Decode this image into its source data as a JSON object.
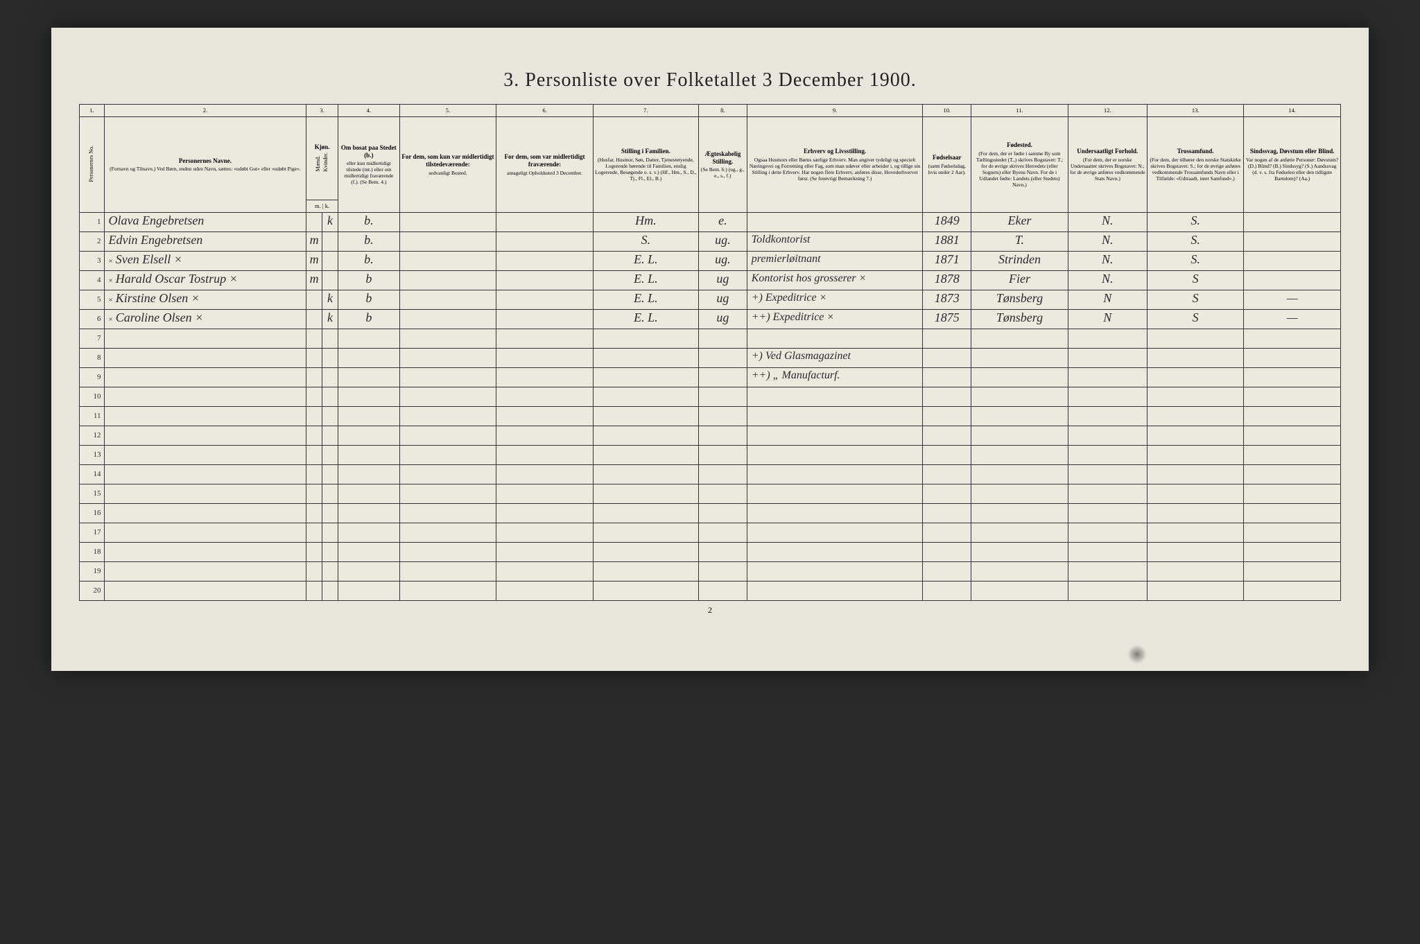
{
  "title": "3. Personliste over Folketallet 3 December 1900.",
  "page_footer": "2",
  "colors": {
    "page_bg": "#e8e6dc",
    "table_bg": "#ece9df",
    "border": "#333333",
    "ink": "#2a2a2a",
    "outer_bg": "#2a2a2a"
  },
  "typography": {
    "title_fontsize_pt": 21,
    "header_fontsize_pt": 7,
    "body_script_fontsize_pt": 14,
    "rownum_fontsize_pt": 8
  },
  "column_numbers": [
    "1.",
    "2.",
    "3.",
    "4.",
    "5.",
    "6.",
    "7.",
    "8.",
    "9.",
    "10.",
    "11.",
    "12.",
    "13.",
    "14."
  ],
  "headers": {
    "c1": {
      "vertical": "Personernes No."
    },
    "c2": {
      "main": "Personernes Navne.",
      "sub": "(Fornavn og Tilnavn.)\nVed Børn, endnu uden Navn, sættes: «udøbt Gut» eller «udøbt Pige»."
    },
    "c3": {
      "main": "Kjøn.",
      "sub_m": "Mænd.",
      "sub_k": "Kvinder.",
      "row2": "m. | k."
    },
    "c4": {
      "main": "Om bosat paa Stedet (b.)",
      "sub": "eller kun midlertidigt tilstede (mt.) eller om midlertidigt fraværende (f.). (Se Bem. 4.)"
    },
    "c5": {
      "main": "For dem, som kun var midlertidigt tilstedeværende:",
      "sub": "sedvanligt Bosted."
    },
    "c6": {
      "main": "For dem, som var midlertidigt fraværende:",
      "sub": "antageligt Opholdssted 3 December."
    },
    "c7": {
      "main": "Stilling i Familien.",
      "sub": "(Husfar, Husmor, Søn, Datter, Tjenestetyende, Logerende hørende til Familien, enslig Logerende, Besøgende o. s. v.)\n(Hf., Hm., S., D., Tj., Fl., El., B.)"
    },
    "c8": {
      "main": "Ægteskabelig Stilling.",
      "sub": "(Se Bem. 6.)\n(ug., g., e., s., f.)"
    },
    "c9": {
      "main": "Erhverv og Livsstilling.",
      "sub": "Ogsaa Husmors eller Børns særlige Erhverv. Man angiver tydeligt og specielt Næringsvei og Forretning eller Fag, som man udøver eller arbeider i, og tillige sin Stilling i dette Erhverv. Har nogen flere Erhverv, anføres disse, Hovederhvervet først.\n(Se forøvrigt Bemærkning 7.)"
    },
    "c10": {
      "main": "Fødselsaar",
      "sub": "(samt Fødselsdag, hvis under 2 Aar)."
    },
    "c11": {
      "main": "Fødested.",
      "sub": "(For dem, der er fødte i samme By som Tællingsstedet (T.,) skrives Bogstavet: T.; for de øvrige skrives Herredets (eller Sognets) eller Byens Navn. For de i Udlandet fødte: Landets (eller Stedets) Navn.)"
    },
    "c12": {
      "main": "Undersaatligt Forhold.",
      "sub": "(For dem, der er norske Undersaatter skrives Bogstavet: N.; for de øvrige anføres vedkommende Stats Navn.)"
    },
    "c13": {
      "main": "Trossamfund.",
      "sub": "(For dem, der tilhører den norske Statskirke skrives Bogstavet: S.; for de øvrige anføres vedkommende Trossamfunds Navn eller i Tilfælde: «Udtraadt, intet Samfund».)"
    },
    "c14": {
      "main": "Sindssvag, Døvstum eller Blind.",
      "sub": "Var nogen af de anførte Personer: Døvstum? (D.) Blind? (B.) Sindssyg? (S.) Aandssvag (d. v. s. fra Fødselen eller den tidligste Barndom)? (Aa.)"
    }
  },
  "rows": [
    {
      "no": "1",
      "prefix": "",
      "name": "Olava Engebretsen",
      "m": "",
      "k": "k",
      "c4": "b.",
      "c5": "",
      "c6": "",
      "c7": "Hm.",
      "c8": "e.",
      "c9": "",
      "c10": "1849",
      "c11": "Eker",
      "c12": "N.",
      "c13": "S.",
      "c14": ""
    },
    {
      "no": "2",
      "prefix": "",
      "name": "Edvin Engebretsen",
      "m": "m",
      "k": "",
      "c4": "b.",
      "c5": "",
      "c6": "",
      "c7": "S.",
      "c8": "ug.",
      "c9": "Toldkontorist",
      "c10": "1881",
      "c11": "T.",
      "c12": "N.",
      "c13": "S.",
      "c14": ""
    },
    {
      "no": "3",
      "prefix": "×",
      "name": "Sven Elsell   ×",
      "m": "m",
      "k": "",
      "c4": "b.",
      "c5": "",
      "c6": "",
      "c7": "E. L.",
      "c8": "ug.",
      "c9": "premierløitnant",
      "c10": "1871",
      "c11": "Strinden",
      "c12": "N.",
      "c13": "S.",
      "c14": ""
    },
    {
      "no": "4",
      "prefix": "×",
      "name": "Harald Oscar Tostrup ×",
      "m": "m",
      "k": "",
      "c4": "b",
      "c5": "",
      "c6": "",
      "c7": "E. L.",
      "c8": "ug",
      "c9": "Kontorist hos grosserer ×",
      "c10": "1878",
      "c11": "Fier",
      "c12": "N.",
      "c13": "S",
      "c14": ""
    },
    {
      "no": "5",
      "prefix": "×",
      "name": "Kirstine Olsen   ×",
      "m": "",
      "k": "k",
      "c4": "b",
      "c5": "",
      "c6": "",
      "c7": "E. L.",
      "c8": "ug",
      "c9": "+) Expeditrice   ×",
      "c10": "1873",
      "c11": "Tønsberg",
      "c12": "N",
      "c13": "S",
      "c14": "—"
    },
    {
      "no": "6",
      "prefix": "×",
      "name": "Caroline Olsen   ×",
      "m": "",
      "k": "k",
      "c4": "b",
      "c5": "",
      "c6": "",
      "c7": "E. L.",
      "c8": "ug",
      "c9": "++) Expeditrice   ×",
      "c10": "1875",
      "c11": "Tønsberg",
      "c12": "N",
      "c13": "S",
      "c14": "—"
    },
    {
      "no": "7",
      "prefix": "",
      "name": "",
      "m": "",
      "k": "",
      "c4": "",
      "c5": "",
      "c6": "",
      "c7": "",
      "c8": "",
      "c9": "",
      "c10": "",
      "c11": "",
      "c12": "",
      "c13": "",
      "c14": ""
    },
    {
      "no": "8",
      "prefix": "",
      "name": "",
      "m": "",
      "k": "",
      "c4": "",
      "c5": "",
      "c6": "",
      "c7": "",
      "c8": "",
      "c9": "+) Ved Glasmagazinet",
      "c10": "",
      "c11": "",
      "c12": "",
      "c13": "",
      "c14": ""
    },
    {
      "no": "9",
      "prefix": "",
      "name": "",
      "m": "",
      "k": "",
      "c4": "",
      "c5": "",
      "c6": "",
      "c7": "",
      "c8": "",
      "c9": "++) „ Manufacturf.",
      "c10": "",
      "c11": "",
      "c12": "",
      "c13": "",
      "c14": ""
    },
    {
      "no": "10",
      "prefix": "",
      "name": "",
      "m": "",
      "k": "",
      "c4": "",
      "c5": "",
      "c6": "",
      "c7": "",
      "c8": "",
      "c9": "",
      "c10": "",
      "c11": "",
      "c12": "",
      "c13": "",
      "c14": ""
    },
    {
      "no": "11",
      "prefix": "",
      "name": "",
      "m": "",
      "k": "",
      "c4": "",
      "c5": "",
      "c6": "",
      "c7": "",
      "c8": "",
      "c9": "",
      "c10": "",
      "c11": "",
      "c12": "",
      "c13": "",
      "c14": ""
    },
    {
      "no": "12",
      "prefix": "",
      "name": "",
      "m": "",
      "k": "",
      "c4": "",
      "c5": "",
      "c6": "",
      "c7": "",
      "c8": "",
      "c9": "",
      "c10": "",
      "c11": "",
      "c12": "",
      "c13": "",
      "c14": ""
    },
    {
      "no": "13",
      "prefix": "",
      "name": "",
      "m": "",
      "k": "",
      "c4": "",
      "c5": "",
      "c6": "",
      "c7": "",
      "c8": "",
      "c9": "",
      "c10": "",
      "c11": "",
      "c12": "",
      "c13": "",
      "c14": ""
    },
    {
      "no": "14",
      "prefix": "",
      "name": "",
      "m": "",
      "k": "",
      "c4": "",
      "c5": "",
      "c6": "",
      "c7": "",
      "c8": "",
      "c9": "",
      "c10": "",
      "c11": "",
      "c12": "",
      "c13": "",
      "c14": ""
    },
    {
      "no": "15",
      "prefix": "",
      "name": "",
      "m": "",
      "k": "",
      "c4": "",
      "c5": "",
      "c6": "",
      "c7": "",
      "c8": "",
      "c9": "",
      "c10": "",
      "c11": "",
      "c12": "",
      "c13": "",
      "c14": ""
    },
    {
      "no": "16",
      "prefix": "",
      "name": "",
      "m": "",
      "k": "",
      "c4": "",
      "c5": "",
      "c6": "",
      "c7": "",
      "c8": "",
      "c9": "",
      "c10": "",
      "c11": "",
      "c12": "",
      "c13": "",
      "c14": ""
    },
    {
      "no": "17",
      "prefix": "",
      "name": "",
      "m": "",
      "k": "",
      "c4": "",
      "c5": "",
      "c6": "",
      "c7": "",
      "c8": "",
      "c9": "",
      "c10": "",
      "c11": "",
      "c12": "",
      "c13": "",
      "c14": ""
    },
    {
      "no": "18",
      "prefix": "",
      "name": "",
      "m": "",
      "k": "",
      "c4": "",
      "c5": "",
      "c6": "",
      "c7": "",
      "c8": "",
      "c9": "",
      "c10": "",
      "c11": "",
      "c12": "",
      "c13": "",
      "c14": ""
    },
    {
      "no": "19",
      "prefix": "",
      "name": "",
      "m": "",
      "k": "",
      "c4": "",
      "c5": "",
      "c6": "",
      "c7": "",
      "c8": "",
      "c9": "",
      "c10": "",
      "c11": "",
      "c12": "",
      "c13": "",
      "c14": ""
    },
    {
      "no": "20",
      "prefix": "",
      "name": "",
      "m": "",
      "k": "",
      "c4": "",
      "c5": "",
      "c6": "",
      "c7": "",
      "c8": "",
      "c9": "",
      "c10": "",
      "c11": "",
      "c12": "",
      "c13": "",
      "c14": ""
    }
  ]
}
